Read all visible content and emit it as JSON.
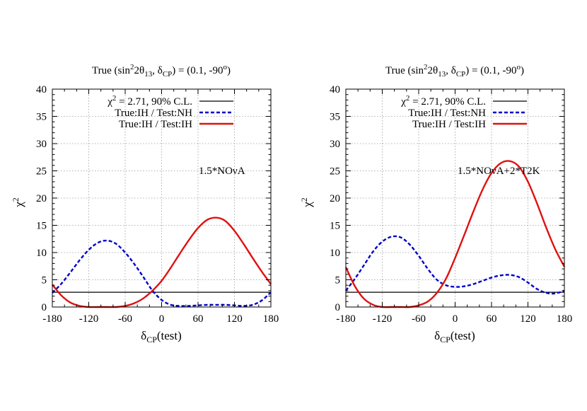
{
  "chart_data": [
    {
      "type": "line",
      "title": "True (sin²2θ₁₃, δCP) = (0.1, -90°)",
      "title_parts": {
        "a": "True (sin",
        "sup1": "2",
        "b": "2θ",
        "sub1": "13",
        "c": ", δ",
        "sub2": "CP",
        "d": ") = (0.1, -90",
        "sup2": "o",
        "e": ")"
      },
      "xlabel_parts": {
        "a": "δ",
        "sub": "CP",
        "b": "(test)"
      },
      "ylabel_parts": {
        "a": "χ",
        "sup": "2"
      },
      "xlim": [
        -180,
        180
      ],
      "ylim": [
        0,
        40
      ],
      "xticks": [
        "-180",
        "-120",
        "-60",
        "0",
        "60",
        "120",
        "180"
      ],
      "yticks": [
        "0",
        "5",
        "10",
        "15",
        "20",
        "25",
        "30",
        "35",
        "40"
      ],
      "grid": true,
      "legend_position": "top-right",
      "annotation": "1.5*NOνA",
      "series": [
        {
          "name": "χ² = 2.71, 90% C.L.",
          "label_parts": {
            "a": "χ",
            "sup": "2",
            "b": " = 2.71, 90% C.L."
          },
          "style": "solid",
          "color": "#000000",
          "x": [
            -180,
            180
          ],
          "y": [
            2.71,
            2.71
          ]
        },
        {
          "name": "True:IH / Test:NH",
          "style": "dashed",
          "color": "#0000cc",
          "x": [
            -180,
            -165,
            -150,
            -135,
            -120,
            -105,
            -90,
            -75,
            -60,
            -45,
            -30,
            -15,
            0,
            15,
            30,
            45,
            60,
            75,
            90,
            105,
            120,
            135,
            150,
            165,
            180
          ],
          "y": [
            2.6,
            4.3,
            6.4,
            8.6,
            10.5,
            11.8,
            12.2,
            11.6,
            10.0,
            7.9,
            5.5,
            3.0,
            1.3,
            0.4,
            0.2,
            0.2,
            0.3,
            0.4,
            0.4,
            0.4,
            0.3,
            0.2,
            0.4,
            1.2,
            2.7
          ]
        },
        {
          "name": "True:IH / Test:IH",
          "style": "solid",
          "color": "#e01010",
          "x": [
            -180,
            -165,
            -150,
            -135,
            -120,
            -105,
            -90,
            -75,
            -60,
            -45,
            -30,
            -15,
            0,
            15,
            30,
            45,
            60,
            75,
            90,
            105,
            120,
            135,
            150,
            165,
            180
          ],
          "y": [
            4.1,
            2.1,
            0.8,
            0.2,
            0.0,
            0.0,
            0.0,
            0.0,
            0.2,
            0.7,
            1.6,
            3.0,
            4.8,
            7.2,
            9.8,
            12.3,
            14.5,
            16.0,
            16.4,
            15.8,
            14.0,
            11.6,
            9.0,
            6.5,
            4.2
          ]
        }
      ]
    },
    {
      "type": "line",
      "title": "True (sin²2θ₁₃, δCP) = (0.1, -90°)",
      "title_parts": {
        "a": "True (sin",
        "sup1": "2",
        "b": "2θ",
        "sub1": "13",
        "c": ", δ",
        "sub2": "CP",
        "d": ") = (0.1, -90",
        "sup2": "o",
        "e": ")"
      },
      "xlabel_parts": {
        "a": "δ",
        "sub": "CP",
        "b": "(test)"
      },
      "ylabel_parts": {
        "a": "χ",
        "sup": "2"
      },
      "xlim": [
        -180,
        180
      ],
      "ylim": [
        0,
        40
      ],
      "xticks": [
        "-180",
        "-120",
        "-60",
        "0",
        "60",
        "120",
        "180"
      ],
      "yticks": [
        "0",
        "5",
        "10",
        "15",
        "20",
        "25",
        "30",
        "35",
        "40"
      ],
      "grid": true,
      "legend_position": "top-right",
      "annotation": "1.5*NOνA+2*T2K",
      "series": [
        {
          "name": "χ² = 2.71, 90% C.L.",
          "label_parts": {
            "a": "χ",
            "sup": "2",
            "b": " = 2.71, 90% C.L."
          },
          "style": "solid",
          "color": "#000000",
          "x": [
            -180,
            180
          ],
          "y": [
            2.71,
            2.71
          ]
        },
        {
          "name": "True:IH / Test:NH",
          "style": "dashed",
          "color": "#0000cc",
          "x": [
            -180,
            -165,
            -150,
            -135,
            -120,
            -105,
            -90,
            -75,
            -60,
            -45,
            -30,
            -15,
            0,
            15,
            30,
            45,
            60,
            75,
            90,
            105,
            120,
            135,
            150,
            165,
            180
          ],
          "y": [
            3.0,
            5.2,
            7.7,
            10.2,
            12.0,
            12.9,
            12.8,
            11.5,
            9.4,
            7.0,
            5.0,
            4.0,
            3.7,
            3.8,
            4.2,
            4.8,
            5.4,
            5.8,
            5.9,
            5.5,
            4.5,
            3.3,
            2.6,
            2.5,
            3.0
          ]
        },
        {
          "name": "True:IH / Test:IH",
          "style": "solid",
          "color": "#e01010",
          "x": [
            -180,
            -165,
            -150,
            -135,
            -120,
            -105,
            -90,
            -75,
            -60,
            -45,
            -30,
            -15,
            0,
            15,
            30,
            45,
            60,
            75,
            90,
            105,
            120,
            135,
            150,
            165,
            180
          ],
          "y": [
            7.3,
            3.8,
            1.5,
            0.4,
            0.0,
            0.0,
            0.0,
            0.0,
            0.3,
            1.0,
            2.6,
            5.2,
            9.0,
            13.2,
            17.5,
            21.5,
            24.6,
            26.4,
            26.8,
            25.8,
            23.0,
            19.0,
            14.6,
            10.6,
            7.4
          ]
        }
      ]
    }
  ]
}
